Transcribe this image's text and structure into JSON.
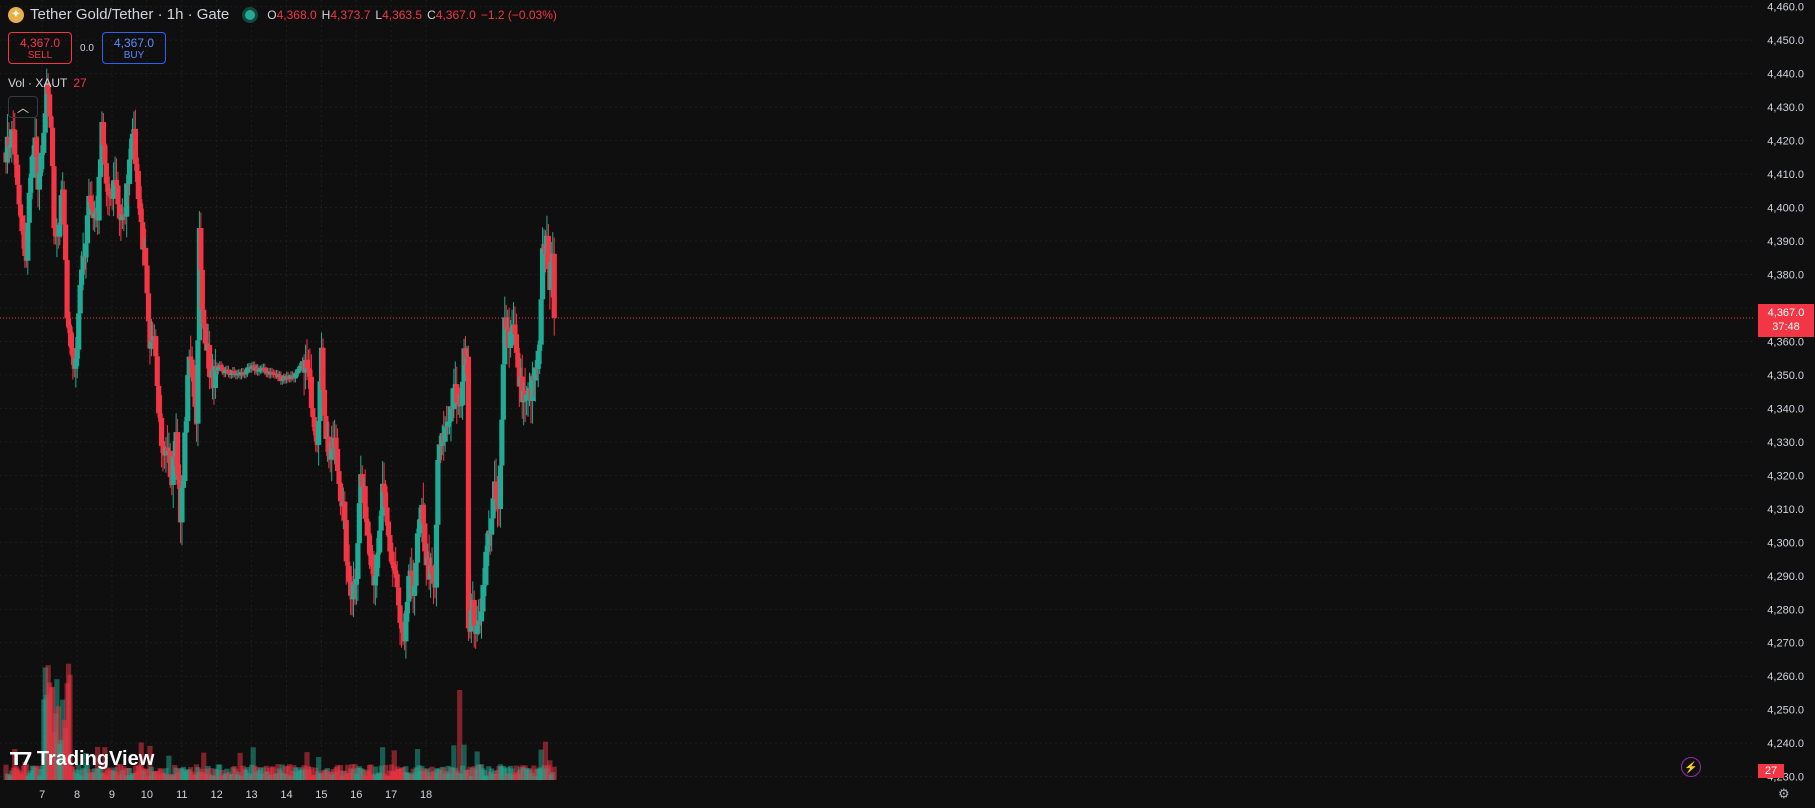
{
  "header": {
    "title": "Tether Gold/Tether · 1h · Gate",
    "coin_icon": "tether-gold-coin-icon",
    "ohlc": [
      {
        "k": "O",
        "v": "4,368.0"
      },
      {
        "k": "H",
        "v": "4,373.7"
      },
      {
        "k": "L",
        "v": "4,363.5"
      },
      {
        "k": "C",
        "v": "4,367.0"
      },
      {
        "k": "",
        "v": "−1.2 (−0.03%)"
      }
    ]
  },
  "trade": {
    "sell_price": "4,367.0",
    "sell_label": "SELL",
    "spread": "0.0",
    "buy_price": "4,367.0",
    "buy_label": "BUY"
  },
  "volume_legend": {
    "label": "Vol · XAUT",
    "value": "27"
  },
  "collapse_icon": "chevron-up-icon",
  "logo_text": "TradingView",
  "price_label": {
    "price": "4,367.0",
    "countdown": "37:48"
  },
  "volume_label": "27",
  "colors": {
    "up": "#22ab94",
    "down": "#f23645",
    "background": "#0f0f0f",
    "grid": "#1e1e1e",
    "text": "#d1d4dc"
  },
  "chart_data": {
    "type": "candlestick",
    "symbol": "XAUT/USDT",
    "interval": "1h",
    "y_ticks": [
      4460,
      4450,
      4440,
      4430,
      4420,
      4410,
      4400,
      4390,
      4380,
      4370,
      4360,
      4350,
      4340,
      4330,
      4320,
      4310,
      4300,
      4290,
      4280,
      4270,
      4260,
      4250,
      4240,
      4230
    ],
    "ylim": [
      4229,
      4462
    ],
    "x_labels": [
      "7",
      "8",
      "9",
      "10",
      "11",
      "12",
      "13",
      "14",
      "15",
      "16",
      "17",
      "18"
    ],
    "last_price": 4367.0,
    "anchors": [
      [
        0,
        4417
      ],
      [
        5,
        4423
      ],
      [
        8,
        4405
      ],
      [
        11,
        4392
      ],
      [
        14,
        4385
      ],
      [
        17,
        4412
      ],
      [
        20,
        4418
      ],
      [
        22,
        4408
      ],
      [
        25,
        4415
      ],
      [
        28,
        4434
      ],
      [
        31,
        4425
      ],
      [
        33,
        4395
      ],
      [
        36,
        4392
      ],
      [
        39,
        4405
      ],
      [
        42,
        4370
      ],
      [
        45,
        4358
      ],
      [
        48,
        4352
      ],
      [
        51,
        4378
      ],
      [
        54,
        4385
      ],
      [
        57,
        4405
      ],
      [
        60,
        4398
      ],
      [
        63,
        4398
      ],
      [
        66,
        4423
      ],
      [
        69,
        4407
      ],
      [
        72,
        4400
      ],
      [
        75,
        4410
      ],
      [
        78,
        4398
      ],
      [
        81,
        4395
      ],
      [
        84,
        4410
      ],
      [
        87,
        4425
      ],
      [
        90,
        4410
      ],
      [
        93,
        4395
      ],
      [
        96,
        4380
      ],
      [
        99,
        4355
      ],
      [
        102,
        4365
      ],
      [
        105,
        4342
      ],
      [
        108,
        4325
      ],
      [
        111,
        4328
      ],
      [
        114,
        4318
      ],
      [
        117,
        4333
      ],
      [
        120,
        4305
      ],
      [
        123,
        4330
      ],
      [
        126,
        4355
      ],
      [
        129,
        4350
      ],
      [
        131,
        4335
      ],
      [
        133,
        4392
      ],
      [
        135,
        4368
      ],
      [
        138,
        4360
      ],
      [
        141,
        4348
      ],
      [
        144,
        4350
      ],
      [
        147,
        4352
      ],
      [
        150,
        4351
      ],
      [
        160,
        4350
      ],
      [
        170,
        4352
      ],
      [
        180,
        4351
      ],
      [
        190,
        4349
      ],
      [
        200,
        4350
      ],
      [
        205,
        4354
      ],
      [
        208,
        4350
      ],
      [
        211,
        4340
      ],
      [
        214,
        4332
      ],
      [
        217,
        4355
      ],
      [
        220,
        4333
      ],
      [
        223,
        4325
      ],
      [
        226,
        4330
      ],
      [
        229,
        4318
      ],
      [
        232,
        4310
      ],
      [
        235,
        4290
      ],
      [
        238,
        4285
      ],
      [
        241,
        4292
      ],
      [
        244,
        4320
      ],
      [
        247,
        4310
      ],
      [
        250,
        4300
      ],
      [
        253,
        4290
      ],
      [
        256,
        4295
      ],
      [
        259,
        4315
      ],
      [
        262,
        4305
      ],
      [
        265,
        4295
      ],
      [
        268,
        4290
      ],
      [
        271,
        4275
      ],
      [
        274,
        4268
      ],
      [
        277,
        4290
      ],
      [
        280,
        4285
      ],
      [
        283,
        4300
      ],
      [
        286,
        4308
      ],
      [
        289,
        4295
      ],
      [
        292,
        4290
      ],
      [
        295,
        4285
      ],
      [
        297,
        4325
      ],
      [
        300,
        4330
      ],
      [
        303,
        4335
      ],
      [
        306,
        4340
      ],
      [
        309,
        4345
      ],
      [
        312,
        4338
      ],
      [
        315,
        4355
      ],
      [
        317,
        4358
      ],
      [
        318,
        4275
      ],
      [
        321,
        4280
      ],
      [
        324,
        4272
      ],
      [
        327,
        4282
      ],
      [
        330,
        4295
      ],
      [
        333,
        4305
      ],
      [
        336,
        4315
      ],
      [
        339,
        4308
      ],
      [
        341,
        4335
      ],
      [
        343,
        4370
      ],
      [
        346,
        4360
      ],
      [
        349,
        4367
      ],
      [
        352,
        4350
      ],
      [
        355,
        4345
      ],
      [
        358,
        4342
      ],
      [
        361,
        4345
      ],
      [
        364,
        4350
      ],
      [
        367,
        4357
      ],
      [
        369,
        4385
      ],
      [
        372,
        4390
      ],
      [
        374,
        4378
      ],
      [
        376,
        4383
      ],
      [
        377,
        4367
      ]
    ]
  }
}
